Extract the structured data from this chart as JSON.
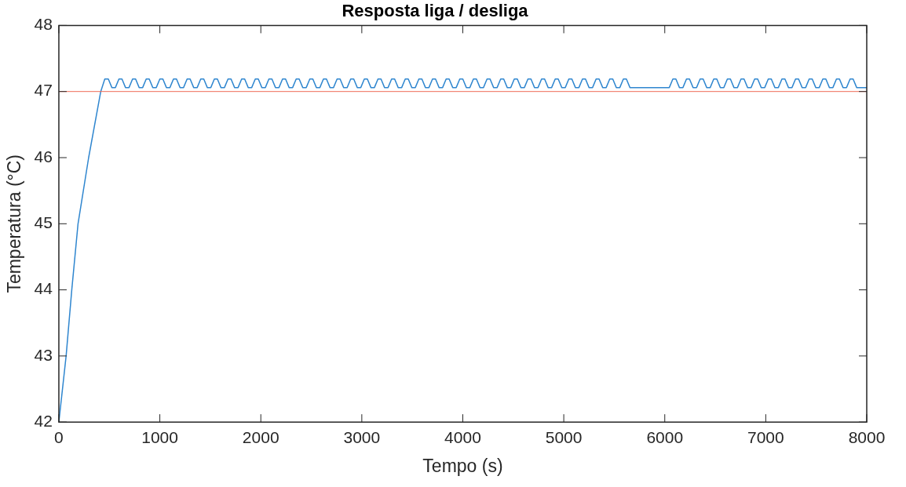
{
  "chart_data": {
    "type": "line",
    "title": "Resposta liga / desliga",
    "xlabel": "Tempo (s)",
    "ylabel": "Temperatura (°C)",
    "xlim": [
      0,
      8000
    ],
    "xticks": [
      0,
      1000,
      2000,
      3000,
      4000,
      5000,
      6000,
      7000,
      8000
    ],
    "ylim": [
      42,
      48
    ],
    "yticks": [
      42,
      43,
      44,
      45,
      46,
      47,
      48
    ],
    "grid": false,
    "legend": false,
    "marker": "none",
    "line_style": "solid",
    "ref_lines": [
      {
        "axis": "y",
        "value": 47,
        "color": "#ee6b55"
      }
    ],
    "series": [
      {
        "color": "#2f86cf",
        "x": [
          0,
          72,
          128,
          190,
          295,
          415,
          455,
          490,
          525,
          560,
          595,
          625,
          660,
          695,
          730,
          760,
          795,
          830,
          865,
          895,
          930,
          965,
          1000,
          1030,
          1065,
          1100,
          1135,
          1165,
          1200,
          1235,
          1270,
          1300,
          1335,
          1370,
          1405,
          1435,
          1470,
          1505,
          1540,
          1570,
          1605,
          1640,
          1675,
          1705,
          1740,
          1775,
          1810,
          1840,
          1875,
          1910,
          1945,
          1975,
          2010,
          2045,
          2080,
          2110,
          2145,
          2180,
          2215,
          2245,
          2280,
          2315,
          2350,
          2380,
          2415,
          2450,
          2485,
          2515,
          2550,
          2585,
          2620,
          2650,
          2685,
          2720,
          2755,
          2785,
          2820,
          2855,
          2890,
          2920,
          2955,
          2990,
          3025,
          3055,
          3090,
          3125,
          3160,
          3190,
          3225,
          3260,
          3295,
          3325,
          3360,
          3395,
          3430,
          3460,
          3495,
          3530,
          3565,
          3595,
          3630,
          3665,
          3700,
          3730,
          3765,
          3800,
          3835,
          3865,
          3900,
          3935,
          3970,
          4000,
          4035,
          4070,
          4105,
          4135,
          4170,
          4205,
          4240,
          4270,
          4305,
          4340,
          4375,
          4405,
          4440,
          4475,
          4510,
          4540,
          4575,
          4610,
          4645,
          4675,
          4710,
          4745,
          4780,
          4810,
          4845,
          4880,
          4915,
          4945,
          4980,
          5015,
          5050,
          5080,
          5115,
          5150,
          5185,
          5215,
          5250,
          5285,
          5320,
          5350,
          5385,
          5420,
          5455,
          5485,
          5520,
          5555,
          5590,
          5620,
          5655,
          6045,
          6080,
          6110,
          6145,
          6180,
          6215,
          6245,
          6280,
          6315,
          6350,
          6380,
          6415,
          6450,
          6485,
          6515,
          6550,
          6585,
          6620,
          6650,
          6685,
          6720,
          6755,
          6785,
          6820,
          6855,
          6890,
          6920,
          6955,
          6990,
          7025,
          7055,
          7090,
          7125,
          7160,
          7190,
          7225,
          7260,
          7295,
          7325,
          7360,
          7395,
          7430,
          7460,
          7495,
          7530,
          7565,
          7595,
          7630,
          7665,
          7700,
          7730,
          7765,
          7800,
          7835,
          7865,
          7900,
          8000
        ],
        "values": [
          42,
          43,
          44,
          45,
          46,
          47,
          47.19,
          47.19,
          47.06,
          47.06,
          47.19,
          47.19,
          47.06,
          47.06,
          47.19,
          47.19,
          47.06,
          47.06,
          47.19,
          47.19,
          47.06,
          47.06,
          47.19,
          47.19,
          47.06,
          47.06,
          47.19,
          47.19,
          47.06,
          47.06,
          47.19,
          47.19,
          47.06,
          47.06,
          47.19,
          47.19,
          47.06,
          47.06,
          47.19,
          47.19,
          47.06,
          47.06,
          47.19,
          47.19,
          47.06,
          47.06,
          47.19,
          47.19,
          47.06,
          47.06,
          47.19,
          47.19,
          47.06,
          47.06,
          47.19,
          47.19,
          47.06,
          47.06,
          47.19,
          47.19,
          47.06,
          47.06,
          47.19,
          47.19,
          47.06,
          47.06,
          47.19,
          47.19,
          47.06,
          47.06,
          47.19,
          47.19,
          47.06,
          47.06,
          47.19,
          47.19,
          47.06,
          47.06,
          47.19,
          47.19,
          47.06,
          47.06,
          47.19,
          47.19,
          47.06,
          47.06,
          47.19,
          47.19,
          47.06,
          47.06,
          47.19,
          47.19,
          47.06,
          47.06,
          47.19,
          47.19,
          47.06,
          47.06,
          47.19,
          47.19,
          47.06,
          47.06,
          47.19,
          47.19,
          47.06,
          47.06,
          47.19,
          47.19,
          47.06,
          47.06,
          47.19,
          47.19,
          47.06,
          47.06,
          47.19,
          47.19,
          47.06,
          47.06,
          47.19,
          47.19,
          47.06,
          47.06,
          47.19,
          47.19,
          47.06,
          47.06,
          47.19,
          47.19,
          47.06,
          47.06,
          47.19,
          47.19,
          47.06,
          47.06,
          47.19,
          47.19,
          47.06,
          47.06,
          47.19,
          47.19,
          47.06,
          47.06,
          47.19,
          47.19,
          47.06,
          47.06,
          47.19,
          47.19,
          47.06,
          47.06,
          47.19,
          47.19,
          47.06,
          47.06,
          47.19,
          47.19,
          47.06,
          47.06,
          47.19,
          47.19,
          47.06,
          47.06,
          47.19,
          47.19,
          47.06,
          47.06,
          47.19,
          47.19,
          47.06,
          47.06,
          47.19,
          47.19,
          47.06,
          47.06,
          47.19,
          47.19,
          47.06,
          47.06,
          47.19,
          47.19,
          47.06,
          47.06,
          47.19,
          47.19,
          47.06,
          47.06,
          47.19,
          47.19,
          47.06,
          47.06,
          47.19,
          47.19,
          47.06,
          47.06,
          47.19,
          47.19,
          47.06,
          47.06,
          47.19,
          47.19,
          47.06,
          47.06,
          47.19,
          47.19,
          47.06,
          47.06,
          47.19,
          47.19,
          47.06,
          47.06,
          47.19,
          47.19,
          47.06,
          47.06,
          47.19,
          47.19,
          47.06,
          47.06
        ]
      }
    ]
  }
}
